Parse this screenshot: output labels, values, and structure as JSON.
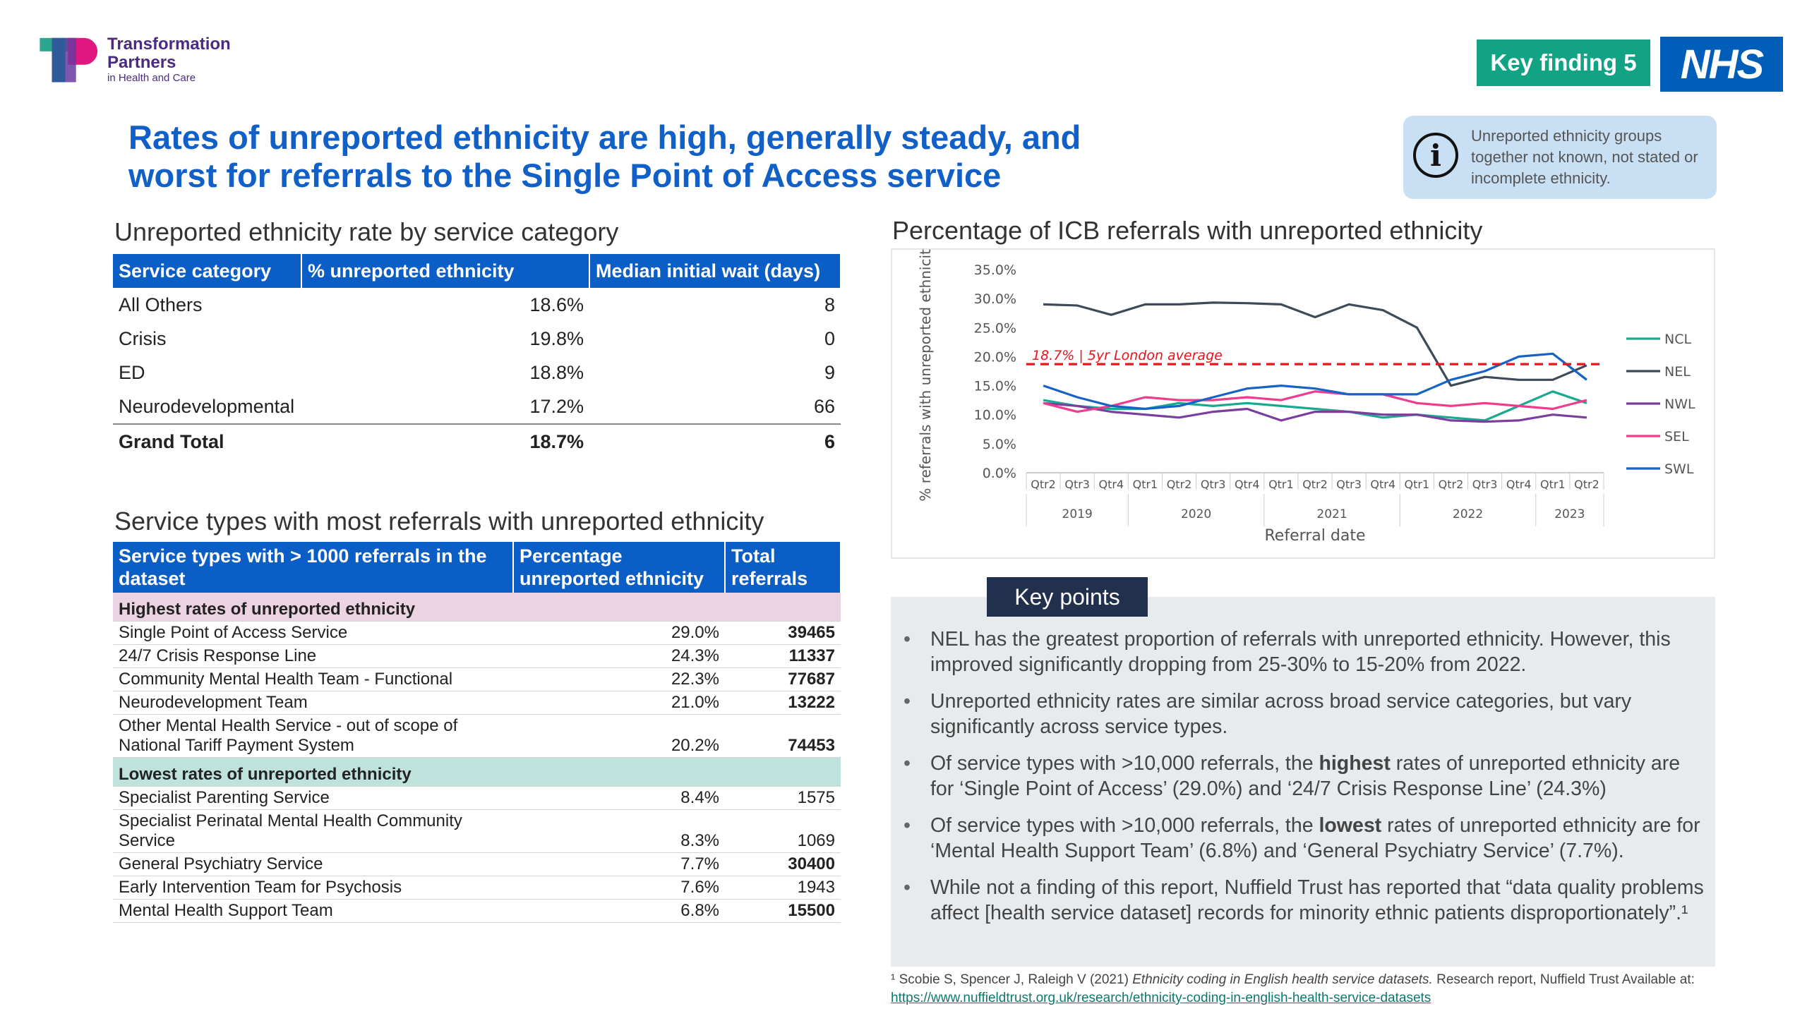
{
  "header": {
    "logo_line1": "Transformation",
    "logo_line2": "Partners",
    "logo_line3": "in Health and Care",
    "key_finding": "Key finding 5",
    "nhs": "NHS",
    "title_line1": "Rates of unreported ethnicity are high, generally steady, and",
    "title_line2": "worst for referrals to the Single Point of Access service",
    "info_text": "Unreported ethnicity groups together not known, not stated or incomplete ethnicity."
  },
  "table1": {
    "heading": "Unreported ethnicity rate by service category",
    "columns": [
      "Service category",
      "% unreported ethnicity",
      "Median initial wait (days)"
    ],
    "rows": [
      {
        "cat": "All Others",
        "pct": "18.6%",
        "wait": "8"
      },
      {
        "cat": "Crisis",
        "pct": "19.8%",
        "wait": "0"
      },
      {
        "cat": "ED",
        "pct": "18.8%",
        "wait": "9"
      },
      {
        "cat": "Neurodevelopmental",
        "pct": "17.2%",
        "wait": "66"
      }
    ],
    "total": {
      "cat": "Grand Total",
      "pct": "18.7%",
      "wait": "6"
    }
  },
  "table2": {
    "heading": "Service types with most referrals with unreported ethnicity",
    "columns": [
      "Service types with > 1000 referrals in the dataset",
      "Percentage unreported ethnicity",
      "Total referrals"
    ],
    "highest_label": "Highest rates of unreported ethnicity",
    "highest": [
      {
        "name": "Single Point of Access Service",
        "pct": "29.0%",
        "total": "39465",
        "bold": true
      },
      {
        "name": "24/7 Crisis Response Line",
        "pct": "24.3%",
        "total": "11337",
        "bold": true
      },
      {
        "name": "Community Mental Health Team - Functional",
        "pct": "22.3%",
        "total": "77687",
        "bold": true
      },
      {
        "name": "Neurodevelopment Team",
        "pct": "21.0%",
        "total": "13222",
        "bold": true
      },
      {
        "name": "Other Mental Health Service - out of scope of National Tariff Payment System",
        "pct": "20.2%",
        "total": "74453",
        "bold": true
      }
    ],
    "lowest_label": "Lowest rates of unreported ethnicity",
    "lowest": [
      {
        "name": "Specialist Parenting Service",
        "pct": "8.4%",
        "total": "1575",
        "bold": false
      },
      {
        "name": "Specialist Perinatal Mental Health Community Service",
        "pct": "8.3%",
        "total": "1069",
        "bold": false
      },
      {
        "name": "General Psychiatry Service",
        "pct": "7.7%",
        "total": "30400",
        "bold": true
      },
      {
        "name": "Early Intervention Team for Psychosis",
        "pct": "7.6%",
        "total": "1943",
        "bold": false
      },
      {
        "name": "Mental Health Support Team",
        "pct": "6.8%",
        "total": "15500",
        "bold": true
      }
    ]
  },
  "chart_heading": "Percentage of ICB referrals with unreported ethnicity",
  "chart_data": {
    "type": "line",
    "title": "",
    "xlabel": "Referral date",
    "ylabel": "% referrals with unreported ethnicity",
    "ylim": [
      0,
      35
    ],
    "yticks": [
      "0.0%",
      "5.0%",
      "10.0%",
      "15.0%",
      "20.0%",
      "25.0%",
      "30.0%",
      "35.0%"
    ],
    "categories": [
      "Qtr2",
      "Qtr3",
      "Qtr4",
      "Qtr1",
      "Qtr2",
      "Qtr3",
      "Qtr4",
      "Qtr1",
      "Qtr2",
      "Qtr3",
      "Qtr4",
      "Qtr1",
      "Qtr2",
      "Qtr3",
      "Qtr4",
      "Qtr1",
      "Qtr2"
    ],
    "years": [
      {
        "label": "2019",
        "start": 0,
        "end": 2
      },
      {
        "label": "2020",
        "start": 3,
        "end": 6
      },
      {
        "label": "2021",
        "start": 7,
        "end": 10
      },
      {
        "label": "2022",
        "start": 11,
        "end": 14
      },
      {
        "label": "2023",
        "start": 15,
        "end": 16
      }
    ],
    "reference": {
      "value": 18.7,
      "label": "18.7% | 5yr London average",
      "color": "#e8141c"
    },
    "legend_position": "right",
    "series": [
      {
        "name": "NCL",
        "color": "#1aa98f",
        "values": [
          12.5,
          11.5,
          11.0,
          11.0,
          12.0,
          11.5,
          12.0,
          11.5,
          11.0,
          10.5,
          9.5,
          10.0,
          9.5,
          9.0,
          11.5,
          14.0,
          12.0
        ]
      },
      {
        "name": "NEL",
        "color": "#3c4a5a",
        "values": [
          29.0,
          28.8,
          27.2,
          29.0,
          29.0,
          29.3,
          29.2,
          29.0,
          26.8,
          29.0,
          28.0,
          25.0,
          15.0,
          16.5,
          16.0,
          16.0,
          18.5
        ]
      },
      {
        "name": "NWL",
        "color": "#7a3f9d",
        "values": [
          12.0,
          11.5,
          10.5,
          10.0,
          9.5,
          10.5,
          11.0,
          9.0,
          10.5,
          10.5,
          10.0,
          10.0,
          9.0,
          8.8,
          9.0,
          10.0,
          9.5
        ]
      },
      {
        "name": "SEL",
        "color": "#ee3c8e",
        "values": [
          12.0,
          10.5,
          11.5,
          13.0,
          12.5,
          12.5,
          13.0,
          12.5,
          14.0,
          13.5,
          13.5,
          12.0,
          11.5,
          12.0,
          11.5,
          11.0,
          12.5
        ]
      },
      {
        "name": "SWL",
        "color": "#1663c7",
        "values": [
          15.0,
          13.0,
          11.5,
          11.0,
          11.5,
          13.0,
          14.5,
          15.0,
          14.5,
          13.5,
          13.5,
          13.5,
          16.0,
          17.5,
          20.0,
          20.5,
          16.0
        ]
      }
    ]
  },
  "key_points": {
    "tab": "Key points",
    "items": [
      {
        "pre": "NEL has the greatest proportion of referrals with unreported ethnicity. However, this improved significantly dropping from 25-30% to 15-20% from 2022.",
        "bold": "",
        "post": ""
      },
      {
        "pre": "Unreported ethnicity rates are similar across broad service categories, but vary significantly across service types.",
        "bold": "",
        "post": ""
      },
      {
        "pre": "Of service types with >10,000 referrals, the ",
        "bold": "highest",
        "post": " rates of unreported ethnicity are for ‘Single Point of Access’ (29.0%) and ‘24/7 Crisis Response Line’ (24.3%)"
      },
      {
        "pre": "Of service types with >10,000 referrals, the ",
        "bold": "lowest",
        "post": " rates of unreported ethnicity are for ‘Mental Health Support Team’ (6.8%) and ‘General Psychiatry Service’ (7.7%)."
      },
      {
        "pre": "While not a finding of this report, Nuffield Trust has reported that “data quality problems affect [health service dataset] records for minority ethnic patients disproportionately”.¹",
        "bold": "",
        "post": ""
      }
    ]
  },
  "footnote": {
    "text_start": "¹ Scobie S, Spencer J, Raleigh V (2021) ",
    "text_italic": "Ethnicity coding in English health service datasets.",
    "text_end": " Research report, Nuffield Trust Available at: ",
    "link": "https://www.nuffieldtrust.org.uk/research/ethnicity-coding-in-english-health-service-datasets"
  }
}
